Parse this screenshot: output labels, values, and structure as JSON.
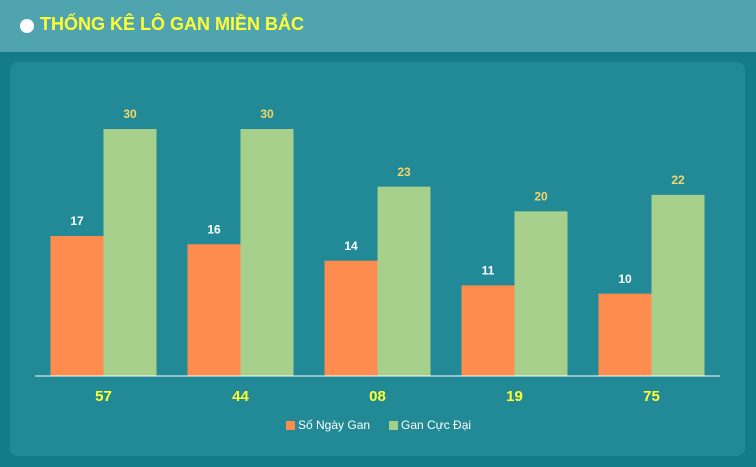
{
  "chart_data": {
    "type": "bar",
    "title": "THỐNG KÊ LÔ GAN MIỀN BẮC",
    "categories": [
      "57",
      "44",
      "08",
      "19",
      "75"
    ],
    "series": [
      {
        "name": "Số Ngày Gan",
        "color": "#ff8c4f",
        "values": [
          17,
          16,
          14,
          11,
          10
        ]
      },
      {
        "name": "Gan Cực Đại",
        "color": "#a8d08d",
        "values": [
          30,
          30,
          23,
          20,
          22
        ]
      }
    ],
    "legend": "bottom"
  }
}
